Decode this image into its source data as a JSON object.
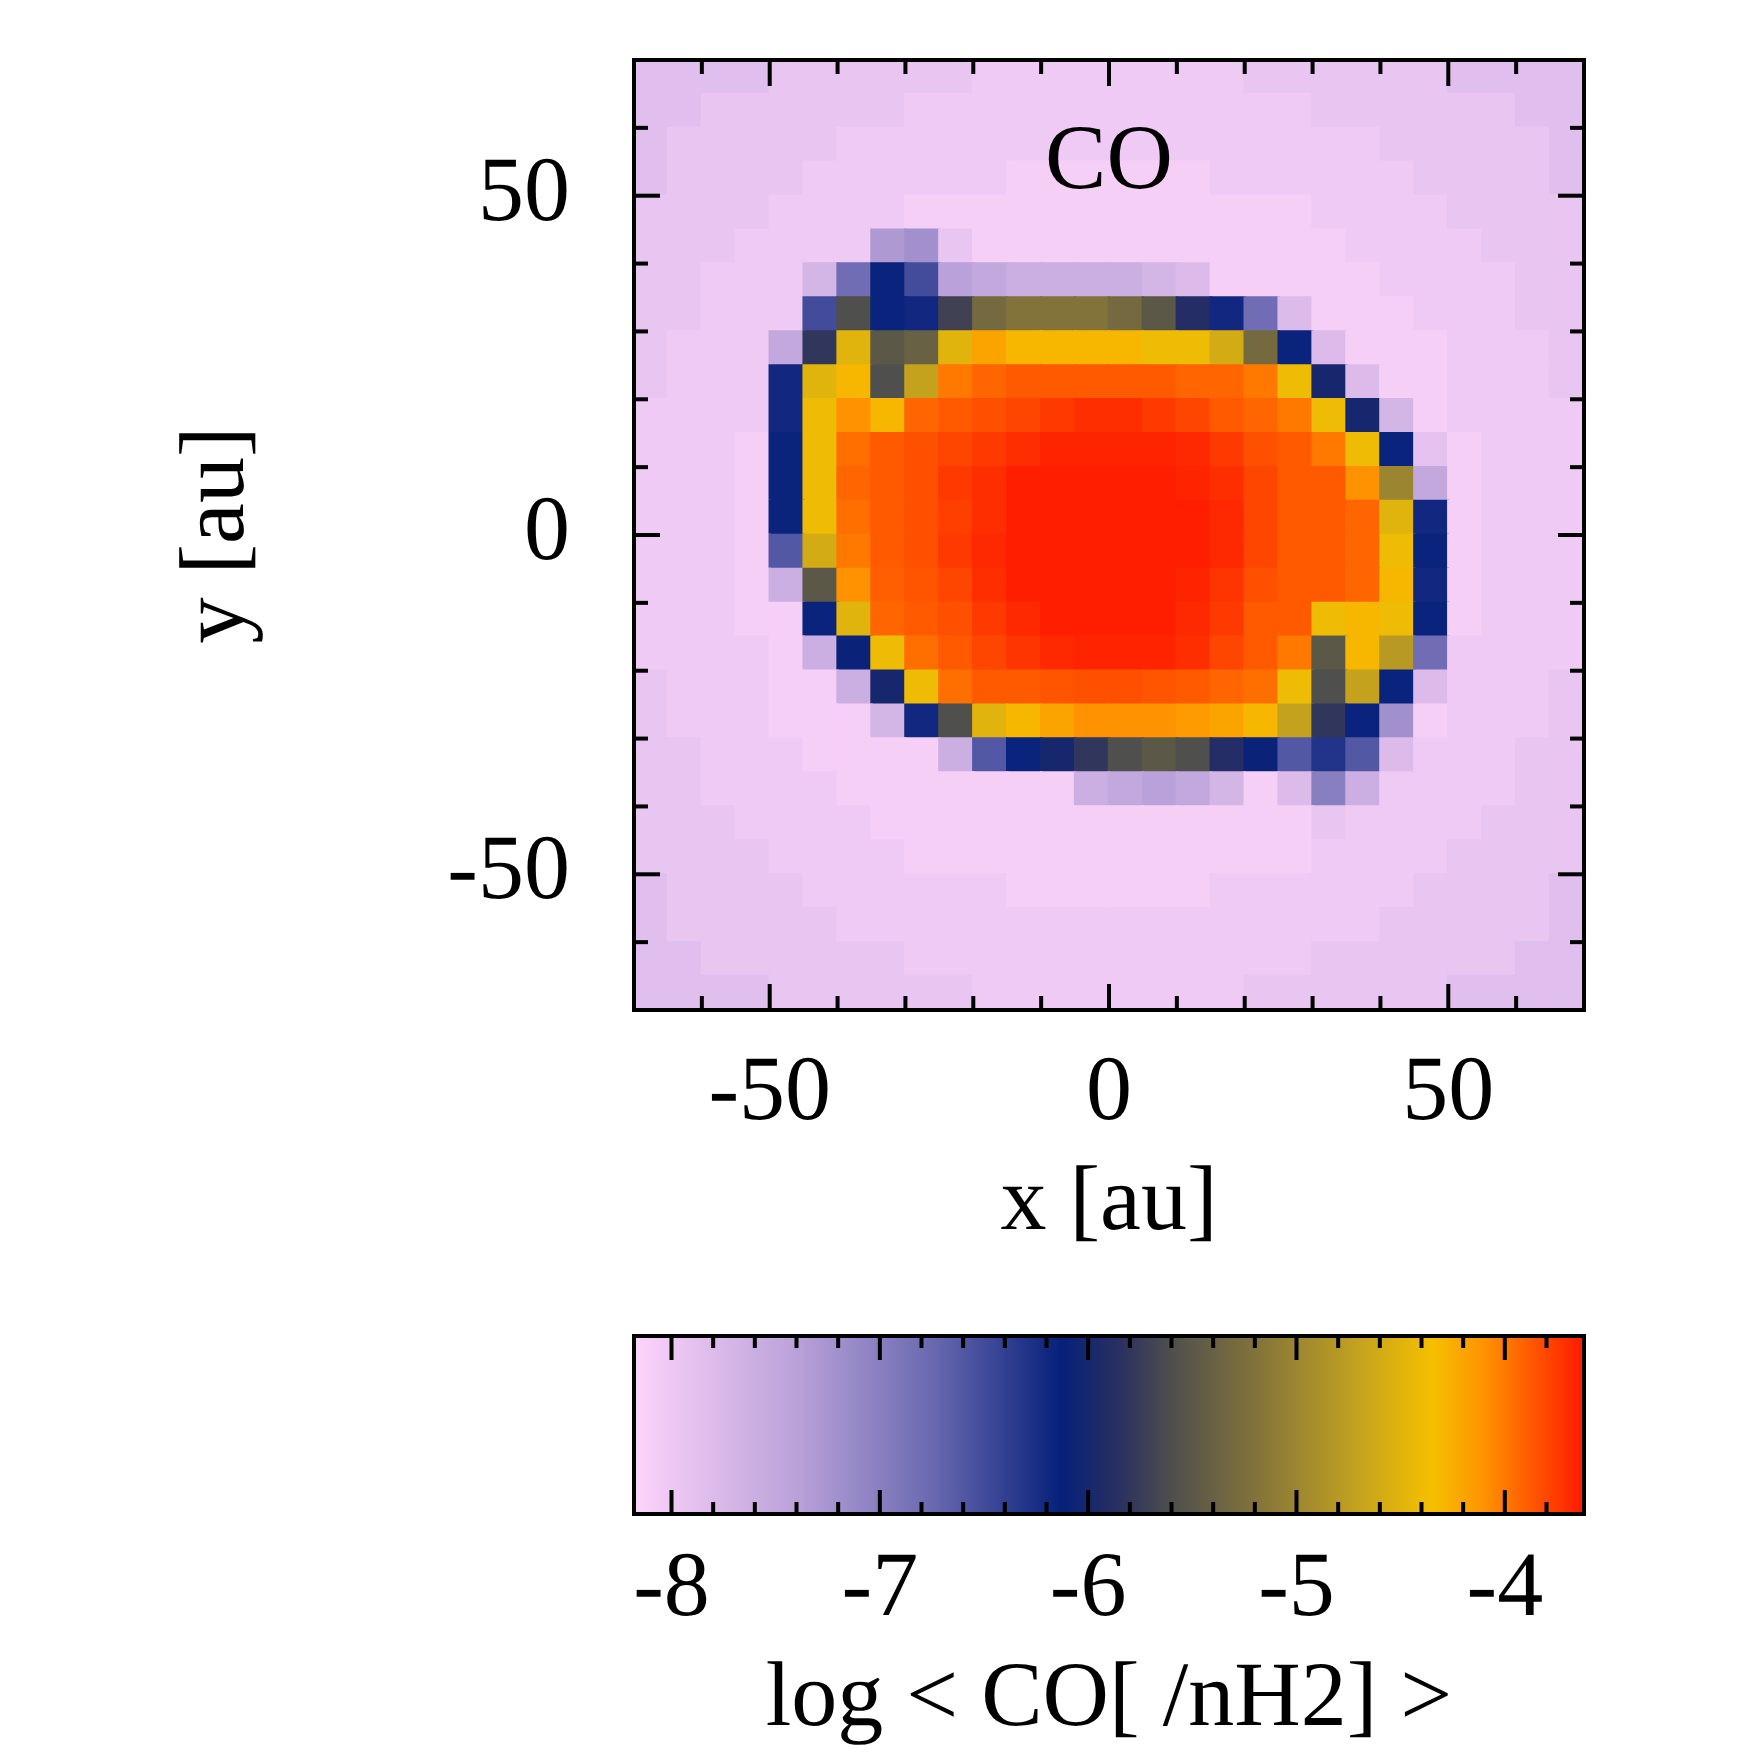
{
  "chart_data": {
    "type": "heatmap",
    "title": "CO",
    "xlabel": "x [au]",
    "ylabel": "y [au]",
    "clabel": "log < CO[ /nH2] >",
    "xlim": [
      -70,
      70
    ],
    "ylim": [
      -70,
      70
    ],
    "xticks": [
      {
        "value": -60,
        "label": null
      },
      -50,
      {
        "value": -40,
        "label": null
      },
      {
        "value": -30,
        "label": null
      },
      {
        "value": -20,
        "label": null
      },
      {
        "value": -10,
        "label": null
      },
      0,
      {
        "value": 10,
        "label": null
      },
      {
        "value": 20,
        "label": null
      },
      {
        "value": 30,
        "label": null
      },
      {
        "value": 40,
        "label": null
      },
      50,
      {
        "value": 60,
        "label": null
      }
    ],
    "yticks": [
      {
        "value": -60,
        "label": null
      },
      -50,
      {
        "value": -40,
        "label": null
      },
      {
        "value": -30,
        "label": null
      },
      {
        "value": -20,
        "label": null
      },
      {
        "value": -10,
        "label": null
      },
      0,
      {
        "value": 10,
        "label": null
      },
      {
        "value": 20,
        "label": null
      },
      {
        "value": 30,
        "label": null
      },
      {
        "value": 40,
        "label": null
      },
      50,
      {
        "value": 60,
        "label": null
      }
    ],
    "clim": [
      -8.18,
      -3.62
    ],
    "cticks": [
      -8,
      {
        "value": -7.8,
        "label": null
      },
      {
        "value": -7.6,
        "label": null
      },
      {
        "value": -7.4,
        "label": null
      },
      {
        "value": -7.2,
        "label": null
      },
      -7,
      {
        "value": -6.8,
        "label": null
      },
      {
        "value": -6.6,
        "label": null
      },
      {
        "value": -6.4,
        "label": null
      },
      {
        "value": -6.2,
        "label": null
      },
      -6,
      {
        "value": -5.8,
        "label": null
      },
      {
        "value": -5.6,
        "label": null
      },
      {
        "value": -5.4,
        "label": null
      },
      {
        "value": -5.2,
        "label": null
      },
      -5,
      {
        "value": -4.8,
        "label": null
      },
      {
        "value": -4.6,
        "label": null
      },
      {
        "value": -4.4,
        "label": null
      },
      {
        "value": -4.2,
        "label": null
      },
      -4,
      {
        "value": -3.8,
        "label": null
      }
    ],
    "cells": [
      [
        -7.85,
        -7.85,
        -7.85,
        -7.85,
        -7.95,
        -7.95,
        -7.95,
        -7.95,
        -7.95,
        -7.95,
        -8.02,
        -8.02,
        -8.02,
        -8.02,
        -8.02,
        -8.02,
        -8.02,
        -8.02,
        -7.95,
        -7.95,
        -7.95,
        -7.95,
        -7.95,
        -7.95,
        -7.85,
        -7.85,
        -7.85,
        -7.85
      ],
      [
        -7.85,
        -7.85,
        -7.95,
        -7.95,
        -7.95,
        -7.95,
        -7.95,
        -7.95,
        -8.02,
        -8.02,
        -8.02,
        -8.02,
        -8.02,
        -8.02,
        -8.02,
        -8.02,
        -8.02,
        -8.02,
        -8.02,
        -8.02,
        -7.95,
        -7.95,
        -7.95,
        -7.95,
        -7.95,
        -7.95,
        -7.85,
        -7.85
      ],
      [
        -7.85,
        -7.95,
        -7.95,
        -7.95,
        -7.95,
        -7.95,
        -8.02,
        -8.02,
        -8.02,
        -8.02,
        -8.02,
        -8.02,
        -8.02,
        -8.02,
        -8.02,
        -8.02,
        -8.02,
        -8.02,
        -8.02,
        -8.02,
        -8.02,
        -8.02,
        -7.95,
        -7.95,
        -7.95,
        -7.95,
        -7.95,
        -7.85
      ],
      [
        -7.85,
        -7.95,
        -7.95,
        -7.95,
        -7.95,
        -8.02,
        -8.02,
        -8.02,
        -8.02,
        -8.02,
        -8.02,
        -8.1,
        -8.1,
        -8.1,
        -8.1,
        -8.1,
        -8.1,
        -8.02,
        -8.02,
        -8.02,
        -8.02,
        -8.02,
        -8.02,
        -7.95,
        -7.95,
        -7.95,
        -7.95,
        -7.85
      ],
      [
        -7.95,
        -7.95,
        -7.95,
        -7.95,
        -8.02,
        -8.02,
        -8.02,
        -8.02,
        -8.1,
        -8.1,
        -8.1,
        -8.1,
        -8.1,
        -8.1,
        -8.1,
        -8.1,
        -8.1,
        -8.1,
        -8.1,
        -8.1,
        -8.02,
        -8.02,
        -8.02,
        -8.02,
        -7.95,
        -7.95,
        -7.95,
        -7.95
      ],
      [
        -7.95,
        -7.95,
        -7.95,
        -8.02,
        -8.02,
        -8.02,
        -8.02,
        -7.3,
        -7.2,
        -7.95,
        -8.1,
        -8.1,
        -8.1,
        -8.1,
        -8.1,
        -8.1,
        -8.1,
        -8.1,
        -8.1,
        -8.1,
        -8.1,
        -8.02,
        -8.02,
        -8.02,
        -8.02,
        -7.95,
        -7.95,
        -7.95
      ],
      [
        -7.95,
        -7.95,
        -8.02,
        -8.02,
        -8.02,
        -7.7,
        -6.8,
        -6.15,
        -6.5,
        -7.4,
        -7.5,
        -7.6,
        -7.6,
        -7.6,
        -7.6,
        -7.7,
        -7.8,
        -8.1,
        -8.1,
        -8.1,
        -8.1,
        -8.1,
        -8.02,
        -8.02,
        -8.02,
        -8.02,
        -7.95,
        -7.95
      ],
      [
        -7.95,
        -7.95,
        -8.02,
        -8.02,
        -8.02,
        -6.5,
        -5.6,
        -6.15,
        -6.2,
        -5.7,
        -5.3,
        -5.2,
        -5.2,
        -5.2,
        -5.3,
        -5.5,
        -5.9,
        -6.2,
        -6.8,
        -7.8,
        -8.1,
        -8.1,
        -8.1,
        -8.02,
        -8.02,
        -8.02,
        -7.95,
        -7.95
      ],
      [
        -7.95,
        -8.02,
        -8.02,
        -8.02,
        -7.5,
        -5.8,
        -4.5,
        -5.5,
        -5.4,
        -4.5,
        -4.2,
        -4.3,
        -4.3,
        -4.3,
        -4.3,
        -4.4,
        -4.4,
        -4.6,
        -5.3,
        -6.15,
        -7.8,
        -8.1,
        -8.1,
        -8.1,
        -8.02,
        -8.02,
        -8.02,
        -7.95
      ],
      [
        -7.95,
        -8.02,
        -8.02,
        -8.02,
        -6.2,
        -4.5,
        -4.3,
        -5.6,
        -4.7,
        -4,
        -3.92,
        -3.88,
        -3.88,
        -3.88,
        -3.88,
        -3.88,
        -3.92,
        -3.92,
        -4,
        -4.4,
        -6,
        -7.8,
        -8.1,
        -8.1,
        -8.02,
        -8.02,
        -8.02,
        -7.95
      ],
      [
        -8.02,
        -8.02,
        -8.02,
        -8.02,
        -6.2,
        -4.4,
        -4.1,
        -4.3,
        -3.92,
        -3.88,
        -3.84,
        -3.8,
        -3.75,
        -3.7,
        -3.7,
        -3.75,
        -3.8,
        -3.88,
        -3.92,
        -4,
        -4.4,
        -6,
        -7.7,
        -8.1,
        -8.02,
        -8.02,
        -8.02,
        -8.02
      ],
      [
        -8.02,
        -8.02,
        -8.02,
        -8.1,
        -6.15,
        -4.4,
        -3.96,
        -3.88,
        -3.84,
        -3.8,
        -3.75,
        -3.7,
        -3.66,
        -3.66,
        -3.66,
        -3.66,
        -3.68,
        -3.75,
        -3.84,
        -3.88,
        -4,
        -4.4,
        -6.15,
        -7.9,
        -8.1,
        -8.02,
        -8.02,
        -8.02
      ],
      [
        -8.02,
        -8.02,
        -8.02,
        -8.1,
        -6.15,
        -4.4,
        -3.92,
        -3.88,
        -3.84,
        -3.75,
        -3.7,
        -3.64,
        -3.64,
        -3.64,
        -3.64,
        -3.64,
        -3.66,
        -3.7,
        -3.8,
        -3.88,
        -3.88,
        -4.1,
        -5,
        -7.5,
        -8.1,
        -8.02,
        -8.02,
        -8.02
      ],
      [
        -8.02,
        -8.02,
        -8.02,
        -8.1,
        -6.15,
        -4.4,
        -3.96,
        -3.88,
        -3.84,
        -3.77,
        -3.7,
        -3.64,
        -3.64,
        -3.64,
        -3.64,
        -3.64,
        -3.64,
        -3.68,
        -3.8,
        -3.88,
        -3.88,
        -3.92,
        -4.5,
        -6.2,
        -8.1,
        -8.02,
        -8.02,
        -8.02
      ],
      [
        -8.02,
        -8.02,
        -8.02,
        -8.1,
        -6.6,
        -4.6,
        -4,
        -3.88,
        -3.84,
        -3.75,
        -3.68,
        -3.64,
        -3.64,
        -3.64,
        -3.64,
        -3.64,
        -3.64,
        -3.68,
        -3.8,
        -3.88,
        -3.88,
        -3.92,
        -4.4,
        -6.15,
        -8.1,
        -8.02,
        -8.02,
        -8.02
      ],
      [
        -8.02,
        -8.02,
        -8.02,
        -8.1,
        -7.6,
        -5.5,
        -4.1,
        -3.9,
        -3.86,
        -3.8,
        -3.7,
        -3.64,
        -3.64,
        -3.64,
        -3.64,
        -3.64,
        -3.66,
        -3.73,
        -3.84,
        -3.88,
        -3.88,
        -3.92,
        -4.3,
        -6.2,
        -8.1,
        -8.02,
        -8.02,
        -8.02
      ],
      [
        -8.02,
        -8.02,
        -8.02,
        -8.1,
        -8.1,
        -6.15,
        -4.5,
        -3.92,
        -3.88,
        -3.84,
        -3.75,
        -3.68,
        -3.64,
        -3.64,
        -3.64,
        -3.64,
        -3.68,
        -3.75,
        -3.88,
        -3.88,
        -4.4,
        -4.3,
        -4.4,
        -6.15,
        -8.1,
        -8.02,
        -8.02,
        -8.02
      ],
      [
        -8.02,
        -8.02,
        -8.02,
        -8.02,
        -8.1,
        -7.6,
        -6.1,
        -4.4,
        -3.96,
        -3.88,
        -3.8,
        -3.73,
        -3.68,
        -3.66,
        -3.66,
        -3.66,
        -3.7,
        -3.8,
        -3.88,
        -4,
        -5.5,
        -4.3,
        -4.8,
        -6.8,
        -8.02,
        -8.02,
        -8.02,
        -8.02
      ],
      [
        -7.95,
        -8.02,
        -8.02,
        -8.02,
        -8.1,
        -8.1,
        -7.6,
        -6,
        -4.4,
        -3.96,
        -3.88,
        -3.88,
        -3.86,
        -3.84,
        -3.84,
        -3.86,
        -3.88,
        -3.92,
        -3.96,
        -4.4,
        -5.6,
        -4.7,
        -6.15,
        -7.8,
        -8.02,
        -8.02,
        -8.02,
        -7.95
      ],
      [
        -7.95,
        -8.02,
        -8.02,
        -8.02,
        -8.1,
        -8.1,
        -8.1,
        -7.7,
        -6.2,
        -5.6,
        -4.5,
        -4.3,
        -4.2,
        -4.1,
        -4.1,
        -4.1,
        -4.15,
        -4.2,
        -4.3,
        -4.7,
        -5.8,
        -6.15,
        -7.2,
        -8.1,
        -8.02,
        -8.02,
        -8.02,
        -7.95
      ],
      [
        -7.95,
        -7.95,
        -8.02,
        -8.02,
        -8.02,
        -8.1,
        -8.1,
        -8.1,
        -8.1,
        -7.6,
        -6.6,
        -6.15,
        -6,
        -5.8,
        -5.6,
        -5.5,
        -5.6,
        -5.9,
        -6.1,
        -6.6,
        -6.3,
        -6.6,
        -7.8,
        -8.02,
        -8.02,
        -8.02,
        -7.95,
        -7.95
      ],
      [
        -7.95,
        -7.95,
        -8.02,
        -8.02,
        -8.02,
        -8.02,
        -8.1,
        -8.1,
        -8.1,
        -8.1,
        -8.1,
        -8.1,
        -8.1,
        -7.6,
        -7.5,
        -7.4,
        -7.5,
        -7.7,
        -8.1,
        -7.8,
        -7,
        -7.6,
        -8.02,
        -8.02,
        -8.02,
        -8.02,
        -7.95,
        -7.95
      ],
      [
        -7.95,
        -7.95,
        -7.95,
        -8.02,
        -8.02,
        -8.02,
        -8.02,
        -8.1,
        -8.1,
        -8.1,
        -8.1,
        -8.1,
        -8.1,
        -8.1,
        -8.1,
        -8.1,
        -8.1,
        -8.1,
        -8.1,
        -8.1,
        -7.95,
        -8.02,
        -8.02,
        -8.02,
        -8.02,
        -7.95,
        -7.95,
        -7.95
      ],
      [
        -7.95,
        -7.95,
        -7.95,
        -7.95,
        -8.02,
        -8.02,
        -8.02,
        -8.02,
        -8.1,
        -8.1,
        -8.1,
        -8.1,
        -8.1,
        -8.1,
        -8.1,
        -8.1,
        -8.1,
        -8.1,
        -8.1,
        -8.1,
        -8.02,
        -8.02,
        -8.02,
        -8.02,
        -7.95,
        -7.95,
        -7.95,
        -7.95
      ],
      [
        -7.85,
        -7.95,
        -7.95,
        -7.95,
        -7.95,
        -8.02,
        -8.02,
        -8.02,
        -8.02,
        -8.02,
        -8.02,
        -8.1,
        -8.1,
        -8.1,
        -8.1,
        -8.1,
        -8.1,
        -8.02,
        -8.02,
        -8.02,
        -8.02,
        -8.02,
        -8.02,
        -7.95,
        -7.95,
        -7.95,
        -7.95,
        -7.85
      ],
      [
        -7.85,
        -7.95,
        -7.95,
        -7.95,
        -7.95,
        -7.95,
        -8.02,
        -8.02,
        -8.02,
        -8.02,
        -8.02,
        -8.02,
        -8.02,
        -8.02,
        -8.02,
        -8.02,
        -8.02,
        -8.02,
        -8.02,
        -8.02,
        -8.02,
        -8.02,
        -7.95,
        -7.95,
        -7.95,
        -7.95,
        -7.95,
        -7.85
      ],
      [
        -7.85,
        -7.85,
        -7.95,
        -7.95,
        -7.95,
        -7.95,
        -7.95,
        -7.95,
        -8.02,
        -8.02,
        -8.02,
        -8.02,
        -8.02,
        -8.02,
        -8.02,
        -8.02,
        -8.02,
        -8.02,
        -8.02,
        -8.02,
        -7.95,
        -7.95,
        -7.95,
        -7.95,
        -7.95,
        -7.95,
        -7.85,
        -7.85
      ],
      [
        -7.85,
        -7.85,
        -7.85,
        -7.85,
        -7.95,
        -7.95,
        -7.95,
        -7.95,
        -7.95,
        -7.95,
        -8.02,
        -8.02,
        -8.02,
        -8.02,
        -8.02,
        -8.02,
        -8.02,
        -8.02,
        -7.95,
        -7.95,
        -7.95,
        -7.95,
        -7.95,
        -7.95,
        -7.85,
        -7.85,
        -7.85,
        -7.85
      ]
    ]
  }
}
